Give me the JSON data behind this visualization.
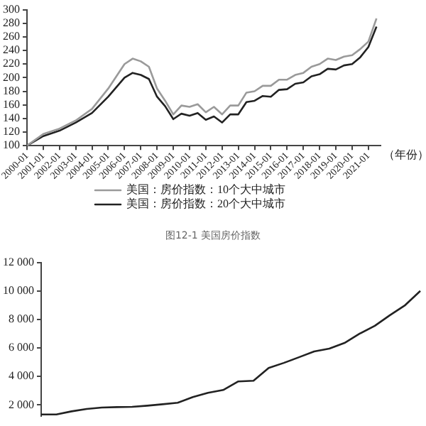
{
  "chart_data": [
    {
      "type": "line",
      "title": "图12-1 美国房价指数",
      "xlabel": "（年份）",
      "x": [
        "2000-01",
        "2001-01",
        "2002-01",
        "2003-01",
        "2004-01",
        "2005-01",
        "2006-01",
        "2006-07",
        "2007-01",
        "2007-07",
        "2008-01",
        "2008-07",
        "2009-01",
        "2009-07",
        "2010-01",
        "2010-07",
        "2011-01",
        "2011-07",
        "2012-01",
        "2012-07",
        "2013-01",
        "2013-07",
        "2014-01",
        "2014-07",
        "2015-01",
        "2015-07",
        "2016-01",
        "2016-07",
        "2017-01",
        "2017-07",
        "2018-01",
        "2018-07",
        "2019-01",
        "2019-07",
        "2020-01",
        "2020-07",
        "2021-01",
        "2021-07"
      ],
      "series": [
        {
          "name": "美国：房价指数：10个大中城市",
          "color": "#9a9a9a",
          "values": [
            100,
            117,
            125,
            137,
            154,
            184,
            220,
            228,
            224,
            216,
            184,
            166,
            146,
            159,
            157,
            161,
            149,
            157,
            146,
            159,
            159,
            178,
            180,
            188,
            188,
            197,
            197,
            204,
            207,
            216,
            220,
            228,
            226,
            231,
            233,
            242,
            253,
            287
          ]
        },
        {
          "name": "美国：房价指数：20个大中城市",
          "color": "#222222",
          "values": [
            100,
            114,
            122,
            134,
            148,
            172,
            200,
            207,
            204,
            198,
            172,
            158,
            139,
            147,
            144,
            148,
            138,
            143,
            134,
            146,
            146,
            164,
            166,
            173,
            172,
            182,
            183,
            191,
            193,
            202,
            205,
            213,
            212,
            218,
            220,
            230,
            245,
            275
          ]
        }
      ],
      "xlim": [
        "2000-01",
        "2021-10"
      ],
      "xticks": [
        "2000-01",
        "2001-01",
        "2002-01",
        "2003-01",
        "2004-01",
        "2005-01",
        "2006-01",
        "2007-01",
        "2008-01",
        "2009-01",
        "2010-01",
        "2011-01",
        "2012-01",
        "2013-01",
        "2014-01",
        "2015-01",
        "2016-01",
        "2017-01",
        "2018-01",
        "2019-01",
        "2020-01",
        "2021-01"
      ],
      "ylim": [
        100,
        300
      ],
      "yticks": [
        100,
        120,
        140,
        160,
        180,
        200,
        220,
        240,
        260,
        280,
        300
      ],
      "grid": false,
      "legend": "bottom",
      "marker": "none",
      "line_style": "solid"
    },
    {
      "type": "line",
      "categories": [
        null,
        null,
        null,
        null,
        null,
        null,
        null,
        null,
        null,
        null,
        null,
        null,
        null,
        null,
        null,
        null,
        null,
        null,
        null,
        null,
        null,
        null,
        null,
        null,
        null,
        null
      ],
      "series": [
        {
          "color": "#222222",
          "values": [
            1330,
            1330,
            1550,
            1720,
            1820,
            1850,
            1870,
            1950,
            2050,
            2150,
            2550,
            2850,
            3050,
            3650,
            3700,
            4600,
            4950,
            5350,
            5750,
            5950,
            6350,
            7000,
            7550,
            8300,
            9000,
            10000
          ]
        }
      ],
      "ylim": [
        1200,
        12000
      ],
      "yticks": [
        {
          "value": 2000,
          "label": "2 000"
        },
        {
          "value": 4000,
          "label": "4 000"
        },
        {
          "value": 6000,
          "label": "6 000"
        },
        {
          "value": 8000,
          "label": "8 000"
        },
        {
          "value": 10000,
          "label": "10 000"
        },
        {
          "value": 12000,
          "label": "12 000"
        }
      ],
      "tick_labels": "y",
      "grid": false,
      "legend": false,
      "marker": "none",
      "line_style": "solid"
    }
  ]
}
